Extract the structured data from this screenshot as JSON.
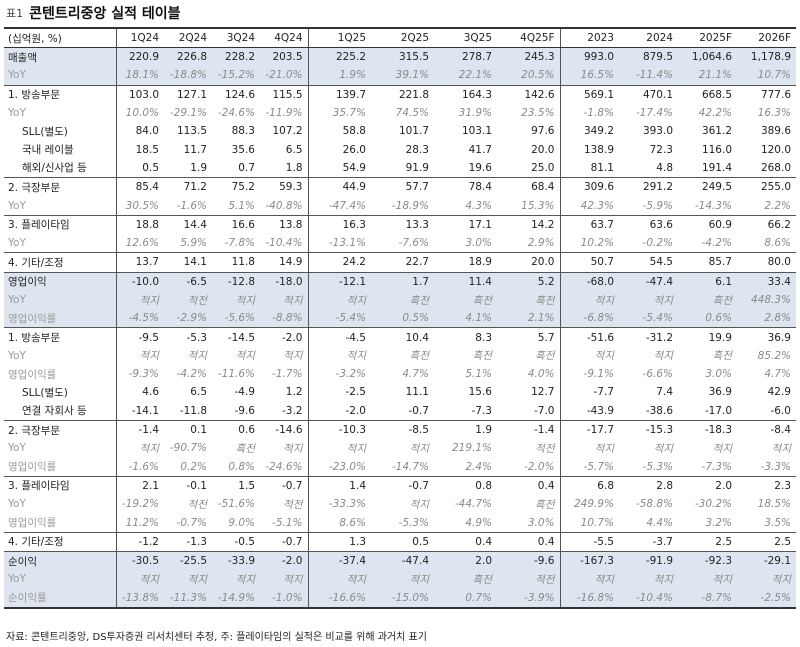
{
  "header": {
    "label": "표1",
    "title": "콘텐트리중앙 실적 테이블"
  },
  "table": {
    "columns": [
      "(십억원, %)",
      "1Q24",
      "2Q24",
      "3Q24",
      "4Q24",
      "1Q25",
      "2Q25",
      "3Q25",
      "4Q25F",
      "2023",
      "2024",
      "2025F",
      "2026F"
    ],
    "rows": [
      [
        "매출액",
        "220.9",
        "226.8",
        "228.2",
        "203.5",
        "225.2",
        "315.5",
        "278.7",
        "245.3",
        "993.0",
        "879.5",
        "1,064.6",
        "1,178.9"
      ],
      [
        "YoY",
        "18.1%",
        "-18.8%",
        "-15.2%",
        "-21.0%",
        "1.9%",
        "39.1%",
        "22.1%",
        "20.5%",
        "16.5%",
        "-11.4%",
        "21.1%",
        "10.7%"
      ],
      [
        "1. 방송부문",
        "103.0",
        "127.1",
        "124.6",
        "115.5",
        "139.7",
        "221.8",
        "164.3",
        "142.6",
        "569.1",
        "470.1",
        "668.5",
        "777.6"
      ],
      [
        "YoY",
        "10.0%",
        "-29.1%",
        "-24.6%",
        "-11.9%",
        "35.7%",
        "74.5%",
        "31.9%",
        "23.5%",
        "-1.8%",
        "-17.4%",
        "42.2%",
        "16.3%"
      ],
      [
        "SLL(별도)",
        "84.0",
        "113.5",
        "88.3",
        "107.2",
        "58.8",
        "101.7",
        "103.1",
        "97.6",
        "349.2",
        "393.0",
        "361.2",
        "389.6"
      ],
      [
        "국내 레이블",
        "18.5",
        "11.7",
        "35.6",
        "6.5",
        "26.0",
        "28.3",
        "41.7",
        "20.0",
        "138.9",
        "72.3",
        "116.0",
        "120.0"
      ],
      [
        "해외/신사업 등",
        "0.5",
        "1.9",
        "0.7",
        "1.8",
        "54.9",
        "91.9",
        "19.6",
        "25.0",
        "81.1",
        "4.8",
        "191.4",
        "268.0"
      ],
      [
        "2. 극장부문",
        "85.4",
        "71.2",
        "75.2",
        "59.3",
        "44.9",
        "57.7",
        "78.4",
        "68.4",
        "309.6",
        "291.2",
        "249.5",
        "255.0"
      ],
      [
        "YoY",
        "30.5%",
        "-1.6%",
        "5.1%",
        "-40.8%",
        "-47.4%",
        "-18.9%",
        "4.3%",
        "15.3%",
        "42.3%",
        "-5.9%",
        "-14.3%",
        "2.2%"
      ],
      [
        "3. 플레이타임",
        "18.8",
        "14.4",
        "16.6",
        "13.8",
        "16.3",
        "13.3",
        "17.1",
        "14.2",
        "63.7",
        "63.6",
        "60.9",
        "66.2"
      ],
      [
        "YoY",
        "12.6%",
        "5.9%",
        "-7.8%",
        "-10.4%",
        "-13.1%",
        "-7.6%",
        "3.0%",
        "2.9%",
        "10.2%",
        "-0.2%",
        "-4.2%",
        "8.6%"
      ],
      [
        "4. 기타/조정",
        "13.7",
        "14.1",
        "11.8",
        "14.9",
        "24.2",
        "22.7",
        "18.9",
        "20.0",
        "50.7",
        "54.5",
        "85.7",
        "80.0"
      ],
      [
        "영업이익",
        "-10.0",
        "-6.5",
        "-12.8",
        "-18.0",
        "-12.1",
        "1.7",
        "11.4",
        "5.2",
        "-68.0",
        "-47.4",
        "6.1",
        "33.4"
      ],
      [
        "YoY",
        "적지",
        "적전",
        "적지",
        "적지",
        "적지",
        "흑전",
        "흑전",
        "흑전",
        "적지",
        "적지",
        "흑전",
        "448.3%"
      ],
      [
        "영업이익률",
        "-4.5%",
        "-2.9%",
        "-5.6%",
        "-8.8%",
        "-5.4%",
        "0.5%",
        "4.1%",
        "2.1%",
        "-6.8%",
        "-5.4%",
        "0.6%",
        "2.8%"
      ],
      [
        "1. 방송부문",
        "-9.5",
        "-5.3",
        "-14.5",
        "-2.0",
        "-4.5",
        "10.4",
        "8.3",
        "5.7",
        "-51.6",
        "-31.2",
        "19.9",
        "36.9"
      ],
      [
        "YoY",
        "적지",
        "적지",
        "적지",
        "적지",
        "적지",
        "흑전",
        "흑전",
        "흑전",
        "적지",
        "적지",
        "흑전",
        "85.2%"
      ],
      [
        "영업이익률",
        "-9.3%",
        "-4.2%",
        "-11.6%",
        "-1.7%",
        "-3.2%",
        "4.7%",
        "5.1%",
        "4.0%",
        "-9.1%",
        "-6.6%",
        "3.0%",
        "4.7%"
      ],
      [
        "SLL(별도)",
        "4.6",
        "6.5",
        "-4.9",
        "1.2",
        "-2.5",
        "11.1",
        "15.6",
        "12.7",
        "-7.7",
        "7.4",
        "36.9",
        "42.9"
      ],
      [
        "연결 자회사 등",
        "-14.1",
        "-11.8",
        "-9.6",
        "-3.2",
        "-2.0",
        "-0.7",
        "-7.3",
        "-7.0",
        "-43.9",
        "-38.6",
        "-17.0",
        "-6.0"
      ],
      [
        "2. 극장부문",
        "-1.4",
        "0.1",
        "0.6",
        "-14.6",
        "-10.3",
        "-8.5",
        "1.9",
        "-1.4",
        "-17.7",
        "-15.3",
        "-18.3",
        "-8.4"
      ],
      [
        "YoY",
        "적지",
        "-90.7%",
        "흑전",
        "적지",
        "적지",
        "적지",
        "219.1%",
        "적전",
        "적지",
        "적지",
        "적지",
        "적지"
      ],
      [
        "영업이익률",
        "-1.6%",
        "0.2%",
        "0.8%",
        "-24.6%",
        "-23.0%",
        "-14.7%",
        "2.4%",
        "-2.0%",
        "-5.7%",
        "-5.3%",
        "-7.3%",
        "-3.3%"
      ],
      [
        "3. 플레이타임",
        "2.1",
        "-0.1",
        "1.5",
        "-0.7",
        "1.4",
        "-0.7",
        "0.8",
        "0.4",
        "6.8",
        "2.8",
        "2.0",
        "2.3"
      ],
      [
        "YoY",
        "-19.2%",
        "적전",
        "-51.6%",
        "적전",
        "-33.3%",
        "적지",
        "-44.7%",
        "흑전",
        "249.9%",
        "-58.8%",
        "-30.2%",
        "18.5%"
      ],
      [
        "영업이익률",
        "11.2%",
        "-0.7%",
        "9.0%",
        "-5.1%",
        "8.6%",
        "-5.3%",
        "4.9%",
        "3.0%",
        "10.7%",
        "4.4%",
        "3.2%",
        "3.5%"
      ],
      [
        "4. 기타/조정",
        "-1.2",
        "-1.3",
        "-0.5",
        "-0.7",
        "1.3",
        "0.5",
        "0.4",
        "0.4",
        "-5.5",
        "-3.7",
        "2.5",
        "2.5"
      ],
      [
        "순이익",
        "-30.5",
        "-25.5",
        "-33.9",
        "-2.0",
        "-37.4",
        "-47.4",
        "2.0",
        "-9.6",
        "-167.3",
        "-91.9",
        "-92.3",
        "-29.1"
      ],
      [
        "YoY",
        "적지",
        "적지",
        "적지",
        "적지",
        "적지",
        "적지",
        "흑전",
        "적전",
        "적지",
        "적지",
        "적지",
        "적지"
      ],
      [
        "순이익률",
        "-13.8%",
        "-11.3%",
        "-14.9%",
        "-1.0%",
        "-16.6%",
        "-15.0%",
        "0.7%",
        "-3.9%",
        "-16.8%",
        "-10.4%",
        "-8.7%",
        "-2.5%"
      ]
    ]
  },
  "footer": "자료: 콘텐트리중앙, DS투자증권 리서치센터 추정, 주: 플레이타임의 실적은 비교를 위해 과거치 표기"
}
